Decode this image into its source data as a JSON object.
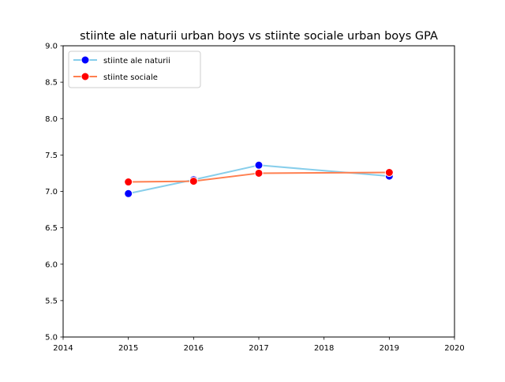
{
  "chart_data": {
    "type": "line",
    "title": "stiinte ale naturii urban boys vs stiinte sociale urban boys GPA",
    "xlabel": "",
    "ylabel": "",
    "xlim": [
      2014,
      2020
    ],
    "ylim": [
      5.0,
      9.0
    ],
    "x_ticks": [
      "2014",
      "2015",
      "2016",
      "2017",
      "2018",
      "2019",
      "2020"
    ],
    "y_ticks": [
      "5.0",
      "5.5",
      "6.0",
      "6.5",
      "7.0",
      "7.5",
      "8.0",
      "8.5",
      "9.0"
    ],
    "grid": false,
    "legend_position": "top-left",
    "series": [
      {
        "name": "stiinte ale naturii",
        "x": [
          2015,
          2016,
          2017,
          2019
        ],
        "values": [
          6.97,
          7.16,
          7.36,
          7.21
        ],
        "line_color": "#87ceeb",
        "marker_color": "#0000ff"
      },
      {
        "name": "stiinte sociale",
        "x": [
          2015,
          2016,
          2017,
          2019
        ],
        "values": [
          7.13,
          7.14,
          7.25,
          7.26
        ],
        "line_color": "#ff7f50",
        "marker_color": "#ff0000"
      }
    ]
  }
}
